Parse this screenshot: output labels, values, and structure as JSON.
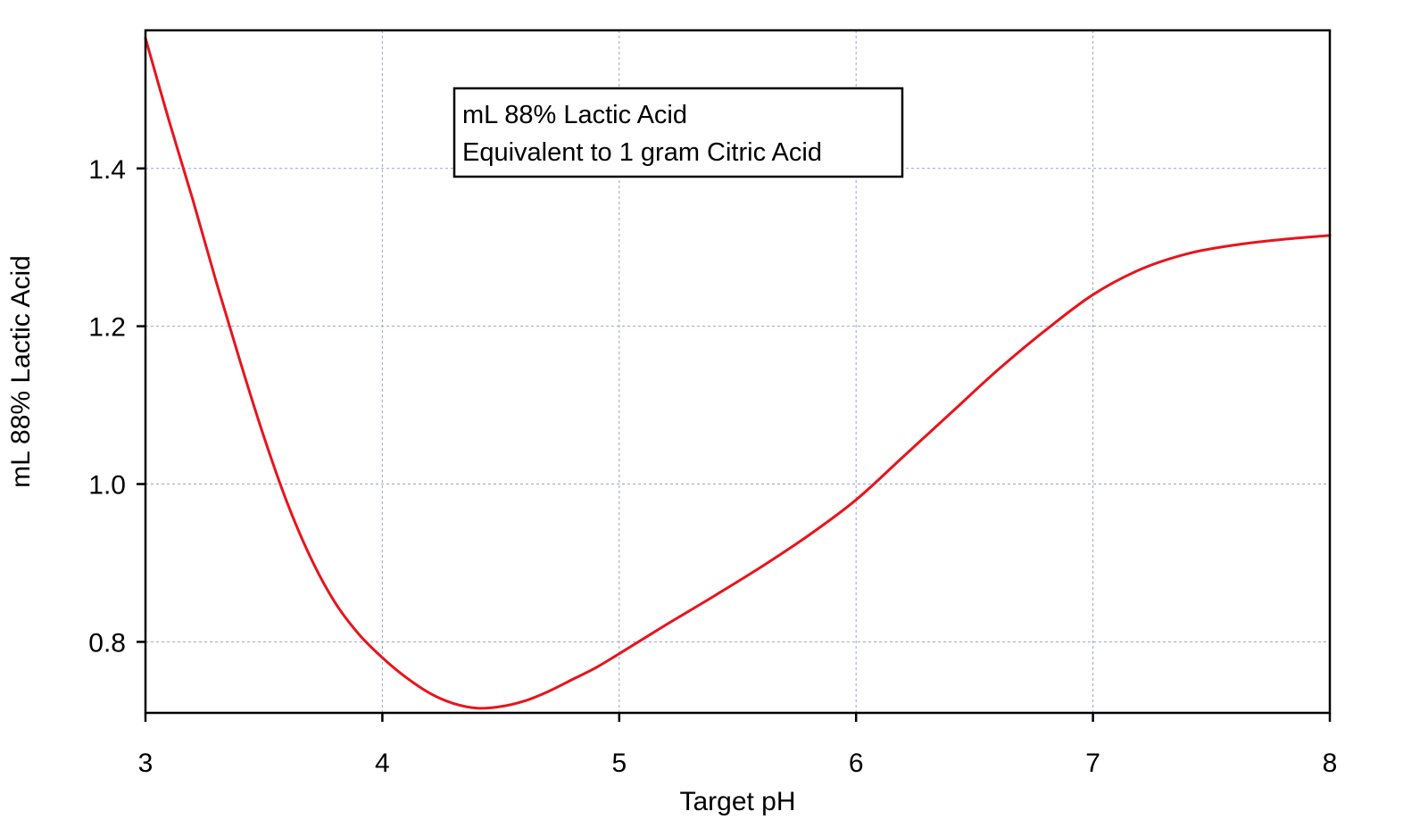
{
  "chart_data": {
    "type": "line",
    "xlabel": "Target pH",
    "ylabel": "mL 88% Lactic Acid",
    "xlim": [
      3,
      8
    ],
    "ylim": [
      0.71,
      1.575
    ],
    "x_ticks": [
      3,
      4,
      5,
      6,
      7,
      8
    ],
    "x_tick_labels": [
      "3",
      "4",
      "5",
      "6",
      "7",
      "8"
    ],
    "y_ticks": [
      0.8,
      1.0,
      1.2,
      1.4
    ],
    "y_tick_labels": [
      "0.8",
      "1.0",
      "1.2",
      "1.4"
    ],
    "grid": true,
    "annotation": {
      "lines": [
        "mL 88% Lactic Acid",
        "Equivalent to 1 gram Citric Acid"
      ],
      "placement": "top-center"
    },
    "series": [
      {
        "color": "#e8141c",
        "x": [
          3.0,
          3.1,
          3.2,
          3.3,
          3.4,
          3.5,
          3.6,
          3.7,
          3.8,
          3.9,
          4.0,
          4.1,
          4.2,
          4.3,
          4.4,
          4.5,
          4.6,
          4.7,
          4.8,
          4.9,
          5.0,
          5.2,
          5.4,
          5.6,
          5.8,
          6.0,
          6.2,
          6.4,
          6.6,
          6.8,
          7.0,
          7.2,
          7.4,
          7.6,
          7.8,
          8.0
        ],
        "y": [
          1.565,
          1.46,
          1.36,
          1.255,
          1.155,
          1.06,
          0.975,
          0.905,
          0.85,
          0.81,
          0.78,
          0.755,
          0.735,
          0.722,
          0.716,
          0.718,
          0.725,
          0.737,
          0.752,
          0.767,
          0.785,
          0.822,
          0.858,
          0.895,
          0.935,
          0.98,
          1.035,
          1.09,
          1.145,
          1.195,
          1.24,
          1.272,
          1.292,
          1.303,
          1.31,
          1.315
        ]
      }
    ]
  }
}
